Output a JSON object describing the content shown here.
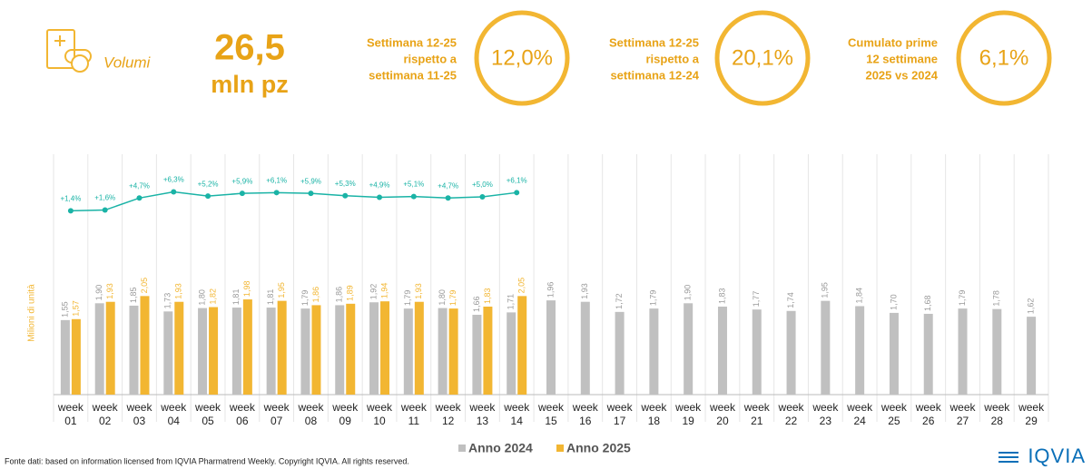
{
  "header": {
    "label": "Volumi",
    "value": "26,5",
    "unit": "mln pz"
  },
  "kpis": [
    {
      "lines": [
        "Settimana 12-25",
        "rispetto a",
        "settimana 11-25"
      ],
      "value": "12,0%"
    },
    {
      "lines": [
        "Settimana 12-25",
        "rispetto a",
        "settimana 12-24"
      ],
      "value": "20,1%"
    },
    {
      "lines": [
        "Cumulato prime",
        "12 settimane",
        "2025 vs 2024"
      ],
      "value": "6,1%"
    }
  ],
  "chart_data": {
    "type": "bar",
    "y_label": "Milioni di unità",
    "categories": [
      "week 01",
      "week 02",
      "week 03",
      "week 04",
      "week 05",
      "week 06",
      "week 07",
      "week 08",
      "week 09",
      "week 10",
      "week 11",
      "week 12",
      "week 13",
      "week 14",
      "week 15",
      "week 16",
      "week 17",
      "week 18",
      "week 19",
      "week 20",
      "week 21",
      "week 22",
      "week 23",
      "week 24",
      "week 25",
      "week 26",
      "week 27",
      "week 28",
      "week 29"
    ],
    "ylim": [
      0,
      5
    ],
    "y2lim": [
      -46,
      16
    ],
    "series": [
      {
        "name": "Anno 2024",
        "color": "#c0c0c0",
        "values": [
          1.55,
          1.9,
          1.85,
          1.73,
          1.8,
          1.81,
          1.81,
          1.79,
          1.86,
          1.92,
          1.79,
          1.8,
          1.66,
          1.71,
          1.96,
          1.93,
          1.72,
          1.79,
          1.9,
          1.83,
          1.77,
          1.74,
          1.95,
          1.84,
          1.7,
          1.68,
          1.79,
          1.78,
          1.62
        ],
        "value_labels": [
          "1,55",
          "1,90",
          "1,85",
          "1,73",
          "1,80",
          "1,81",
          "1,81",
          "1,79",
          "1,86",
          "1,92",
          "1,79",
          "1,80",
          "1,66",
          "1,71",
          "1,96",
          "1,93",
          "1,72",
          "1,79",
          "1,90",
          "1,83",
          "1,77",
          "1,74",
          "1,95",
          "1,84",
          "1,70",
          "1,68",
          "1,79",
          "1,78",
          "1,62"
        ]
      },
      {
        "name": "Anno 2025",
        "color": "#f2b632",
        "values": [
          1.57,
          1.93,
          2.05,
          1.93,
          1.82,
          1.98,
          1.95,
          1.86,
          1.89,
          1.94,
          1.93,
          1.79,
          1.83,
          2.05,
          null,
          null,
          null,
          null,
          null,
          null,
          null,
          null,
          null,
          null,
          null,
          null,
          null,
          null,
          null
        ],
        "value_labels": [
          "1,57",
          "1,93",
          "2,05",
          "1,93",
          "1,82",
          "1,98",
          "1,95",
          "1,86",
          "1,89",
          "1,94",
          "1,93",
          "1,79",
          "1,83",
          "2,05",
          null,
          null,
          null,
          null,
          null,
          null,
          null,
          null,
          null,
          null,
          null,
          null,
          null,
          null,
          null
        ]
      },
      {
        "type": "line",
        "axis": "y2",
        "color": "#1ab3a6",
        "values": [
          1.4,
          1.6,
          4.7,
          6.3,
          5.2,
          5.9,
          6.1,
          5.9,
          5.3,
          4.9,
          5.1,
          4.7,
          5.0,
          6.1,
          null,
          null,
          null,
          null,
          null,
          null,
          null,
          null,
          null,
          null,
          null,
          null,
          null,
          null,
          null
        ],
        "value_labels": [
          "+1,4%",
          "+1,6%",
          "+4,7%",
          "+6,3%",
          "+5,2%",
          "+5,9%",
          "+6,1%",
          "+5,9%",
          "+5,3%",
          "+4,9%",
          "+5,1%",
          "+4,7%",
          "+5,0%",
          "+6,1%",
          null,
          null,
          null,
          null,
          null,
          null,
          null,
          null,
          null,
          null,
          null,
          null,
          null,
          null,
          null
        ]
      }
    ]
  },
  "footer": {
    "source": "Fonte dati: based on information licensed from IQVIA Pharmatrend Weekly. Copyright IQVIA. All rights reserved.",
    "logo": "IQVIA"
  }
}
